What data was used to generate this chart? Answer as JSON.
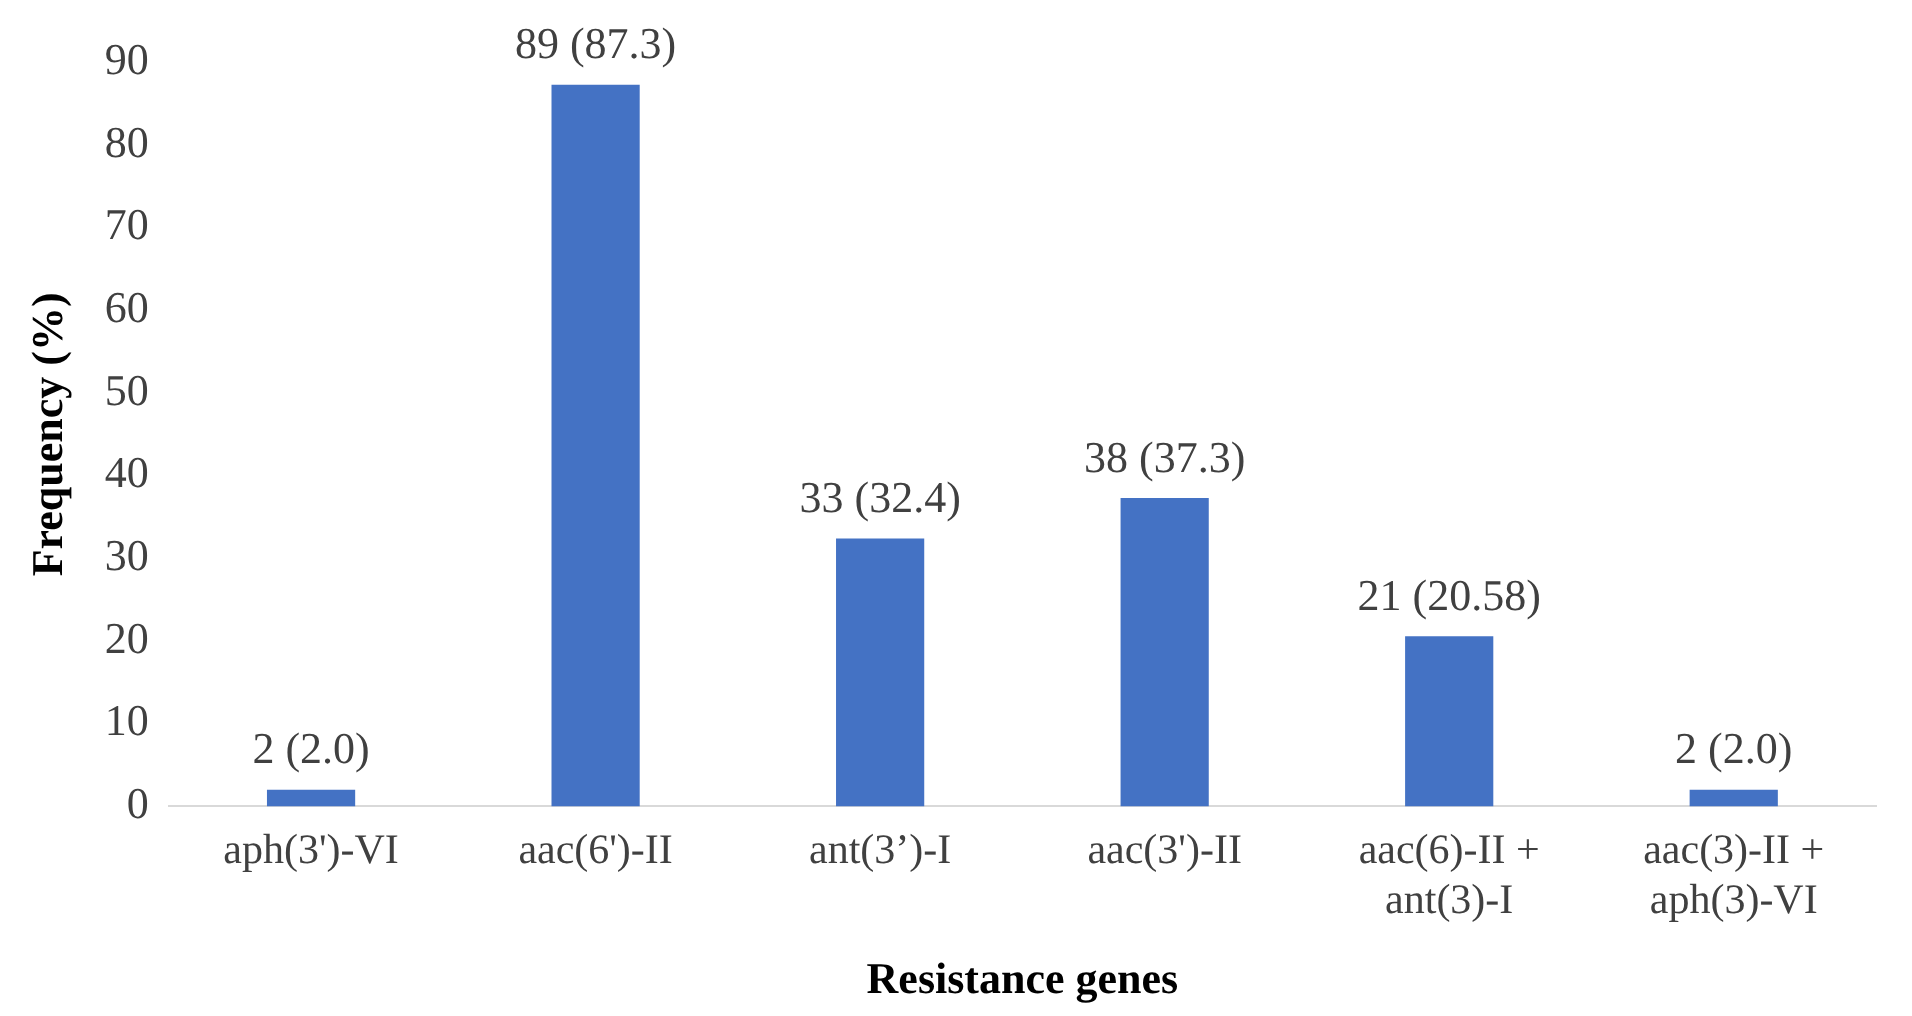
{
  "chart_data": {
    "type": "bar",
    "xlabel": "Resistance genes",
    "ylabel": "Frequency (%)",
    "categories": [
      "aph(3')-VI",
      "aac(6')-II",
      "ant(3’)-I",
      "aac(3')-II",
      "aac(6)-II + ant(3)-I",
      "aac(3)-II + aph(3)-VI"
    ],
    "values": [
      2.0,
      87.3,
      32.4,
      37.3,
      20.58,
      2.0
    ],
    "value_labels": [
      "2 (2.0)",
      "89 (87.3)",
      "33 (32.4)",
      "38 (37.3)",
      "21 (20.58)",
      "2 (2.0)"
    ],
    "color": "#4472c4",
    "ylim": [
      0,
      90
    ],
    "yticks": [
      0,
      10,
      20,
      30,
      40,
      50,
      60,
      70,
      80,
      90
    ],
    "grid": false,
    "legend": false
  }
}
